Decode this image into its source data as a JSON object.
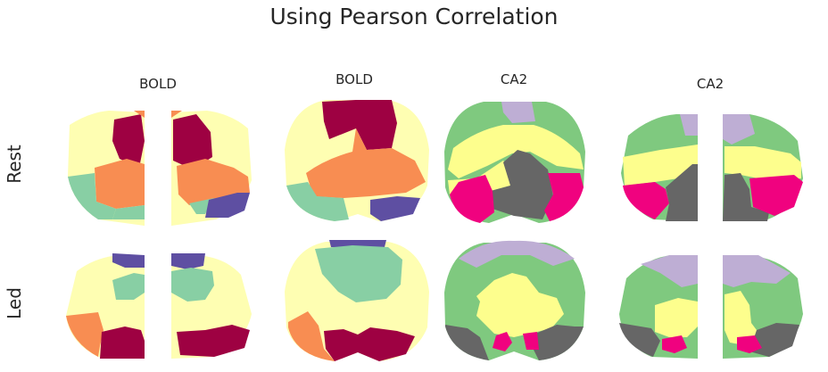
{
  "figure": {
    "title": "Using Pearson Correlation",
    "column_labels": [
      "BOLD",
      "BOLD",
      "CA2",
      "CA2"
    ],
    "row_labels": [
      "Rest",
      "Led"
    ]
  },
  "colors": {
    "crimson": "#9e0142",
    "orange": "#f88d52",
    "cream": "#fefeb2",
    "mint": "#88cfa4",
    "purple": "#5e4fa2",
    "lavender": "#beaed4",
    "green": "#7fc97f",
    "yellow": "#fdfe8d",
    "gray": "#666666",
    "magenta": "#f0027f"
  }
}
